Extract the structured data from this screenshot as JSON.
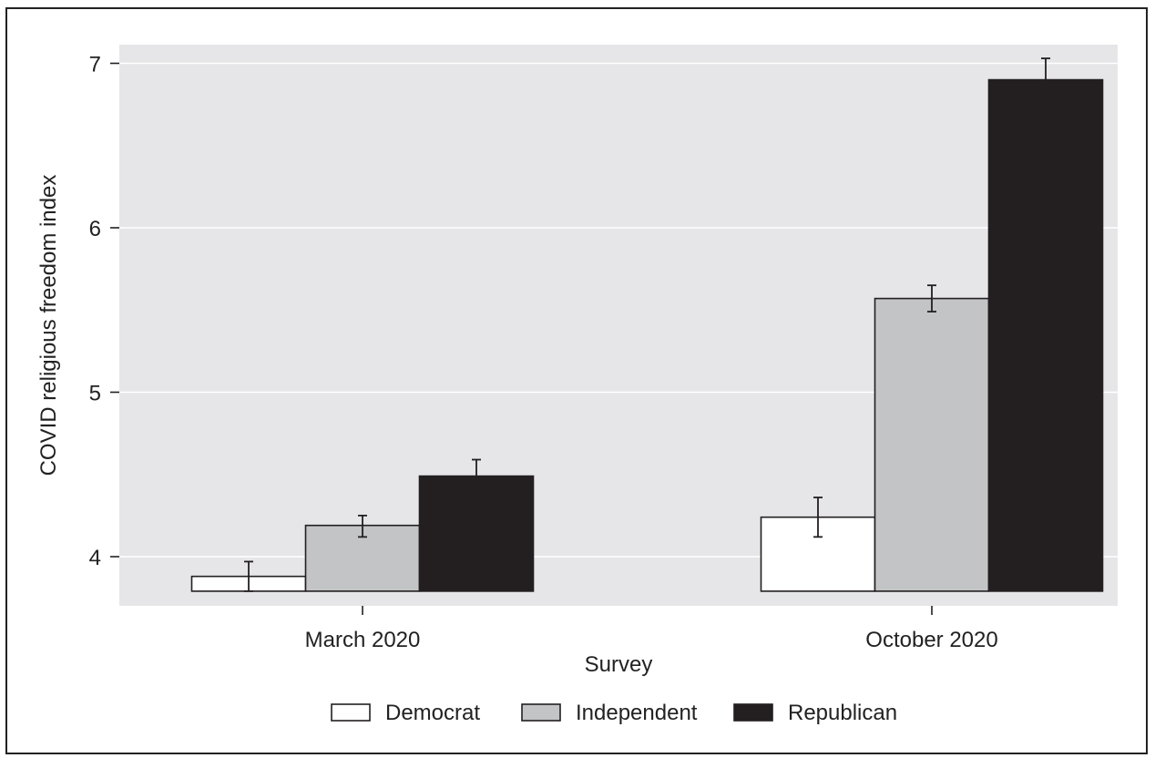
{
  "chart_data": {
    "type": "bar",
    "xlabel": "Survey",
    "ylabel": "COVID religious freedom index",
    "categories": [
      "March 2020",
      "October 2020"
    ],
    "yticks": [
      4,
      5,
      6,
      7
    ],
    "ylim": [
      3.7,
      7.12
    ],
    "bar_base": 3.79,
    "grid": true,
    "legend_position": "bottom",
    "series": [
      {
        "name": "Democrat",
        "color": "#ffffff",
        "values": [
          3.88,
          4.24
        ],
        "error_low": [
          3.79,
          4.12
        ],
        "error_high": [
          3.97,
          4.36
        ]
      },
      {
        "name": "Independent",
        "color": "#c3c4c6",
        "values": [
          4.19,
          5.57
        ],
        "error_low": [
          4.12,
          5.49
        ],
        "error_high": [
          4.25,
          5.65
        ]
      },
      {
        "name": "Republican",
        "color": "#231f20",
        "values": [
          4.49,
          6.9
        ],
        "error_low": [
          4.4,
          6.79
        ],
        "error_high": [
          4.59,
          7.03
        ]
      }
    ],
    "colors": {
      "panel_background": "#e6e6e8",
      "gridline": "#ffffff",
      "bar_outline": "#231f20",
      "error_bar": "#231f20"
    }
  }
}
